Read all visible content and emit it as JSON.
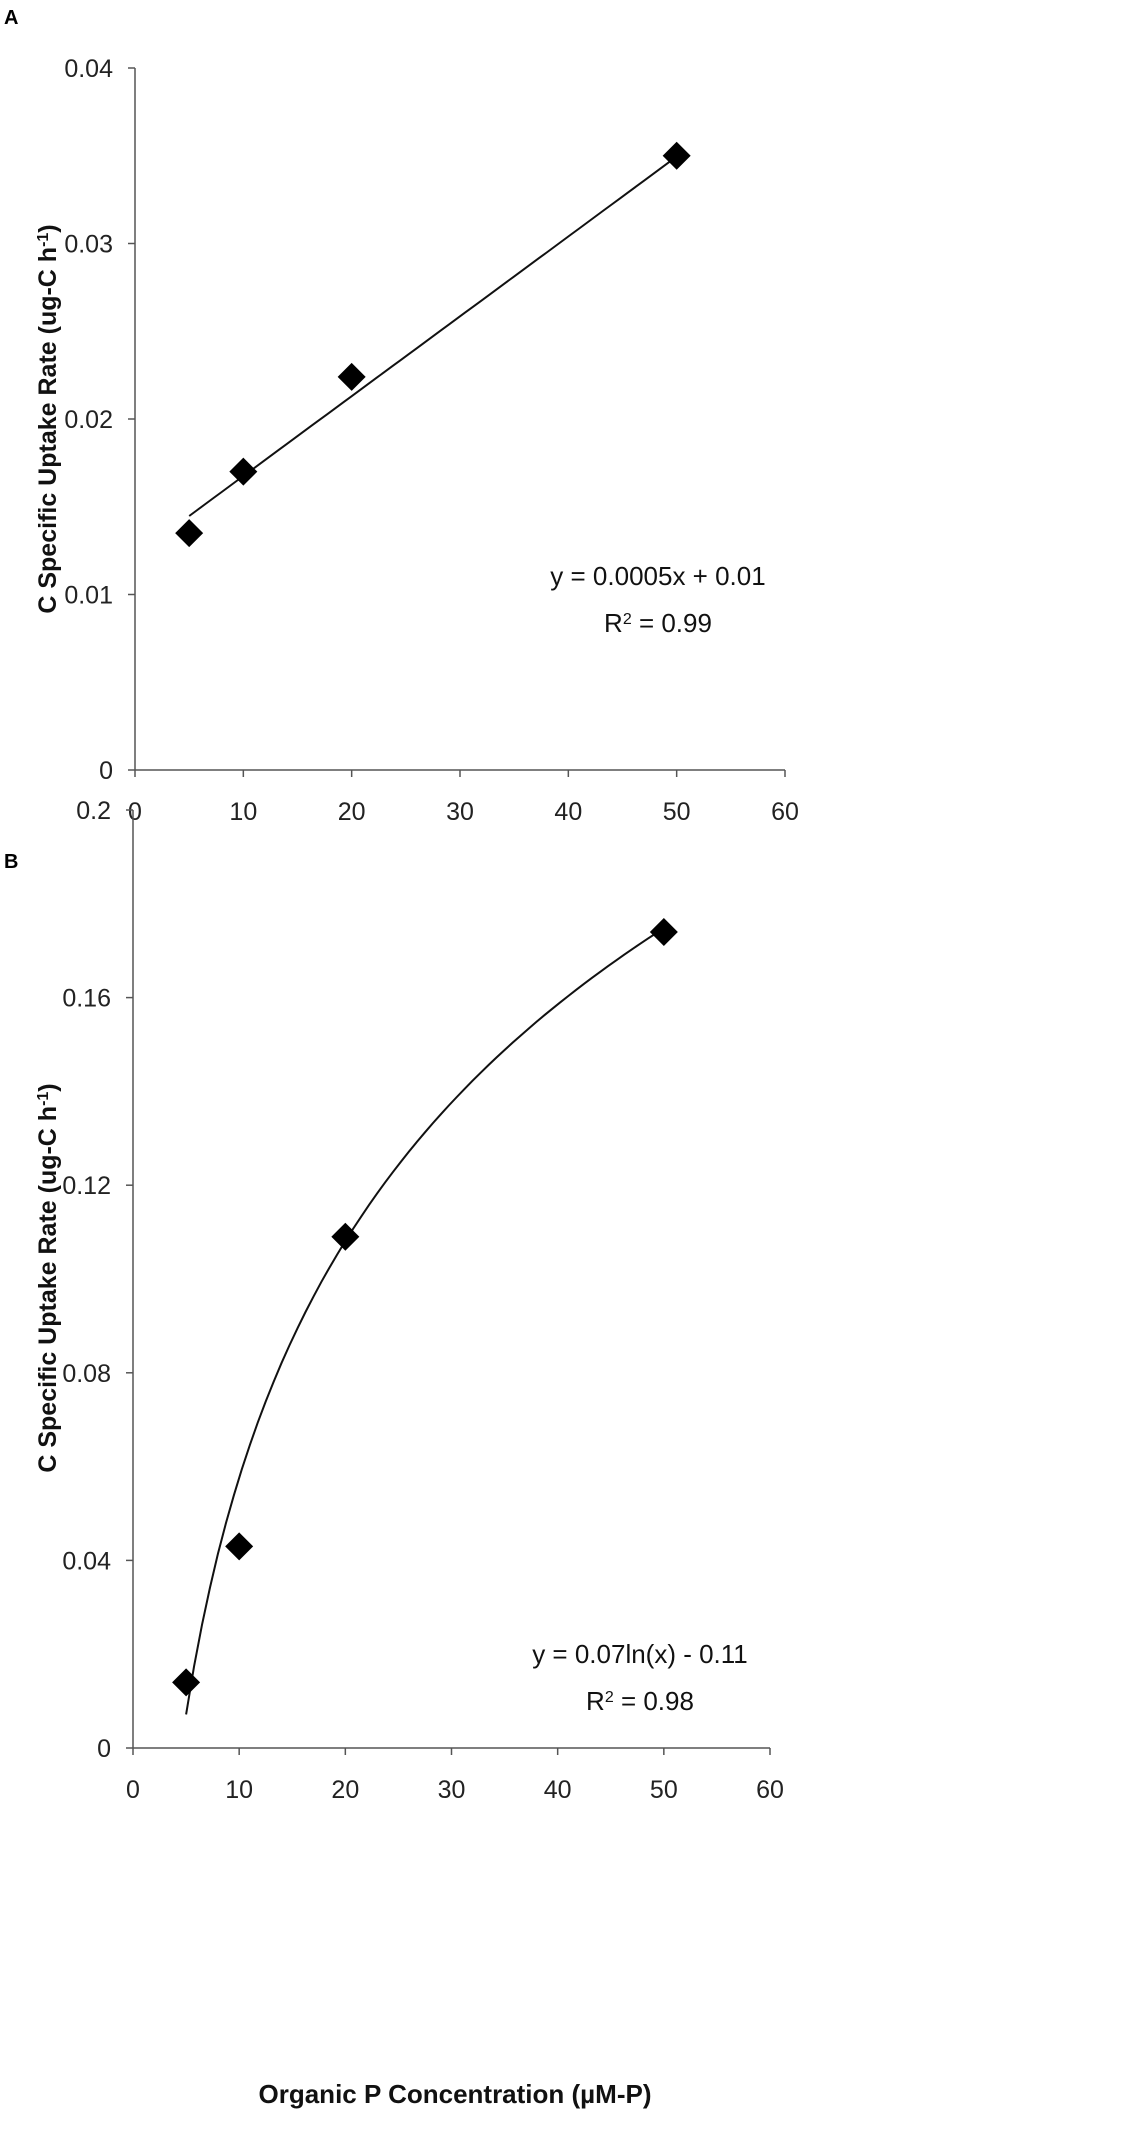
{
  "chart_data": [
    {
      "panel": "A",
      "type": "scatter",
      "ylabel": "C Specific Uptake Rate (ug-C h",
      "ylabel_sup": "-1",
      "ylabel_tail": ")",
      "xlim": [
        0,
        60
      ],
      "ylim": [
        0,
        0.04
      ],
      "xticks": [
        "0",
        "10",
        "20",
        "30",
        "40",
        "50",
        "60"
      ],
      "yticks": [
        "0",
        "0.01",
        "0.02",
        "0.03",
        "0.04"
      ],
      "x": [
        5,
        10,
        20,
        50
      ],
      "y": [
        0.0135,
        0.017,
        0.0224,
        0.035
      ],
      "trendline": {
        "kind": "linear",
        "slope": 0.000455,
        "intercept": 0.0122,
        "x_range": [
          5,
          50
        ]
      },
      "equation": "y = 0.0005x + 0.01",
      "r2_prefix": "R",
      "r2_sup": "2",
      "r2_value": " = 0.99",
      "grid": false
    },
    {
      "panel": "B",
      "type": "scatter",
      "ylabel": "C Specific Uptake Rate (ug-C h",
      "ylabel_sup": "-1",
      "ylabel_tail": ")",
      "xlabel": "Organic P Concentration (µM-P)",
      "xlim": [
        0,
        60
      ],
      "ylim": [
        0,
        0.2
      ],
      "xticks": [
        "0",
        "10",
        "20",
        "30",
        "40",
        "50",
        "60"
      ],
      "yticks": [
        "0",
        "0.04",
        "0.08",
        "0.12",
        "0.16",
        "0.2"
      ],
      "x": [
        5,
        10,
        20,
        50
      ],
      "y": [
        0.014,
        0.043,
        0.109,
        0.174
      ],
      "trendline": {
        "kind": "log",
        "a": 0.0728,
        "b": -0.11,
        "x_range": [
          5,
          50
        ]
      },
      "equation": "y = 0.07ln(x) - 0.11",
      "r2_prefix": "R",
      "r2_sup": "2",
      "r2_value": " = 0.98",
      "grid": false
    }
  ]
}
